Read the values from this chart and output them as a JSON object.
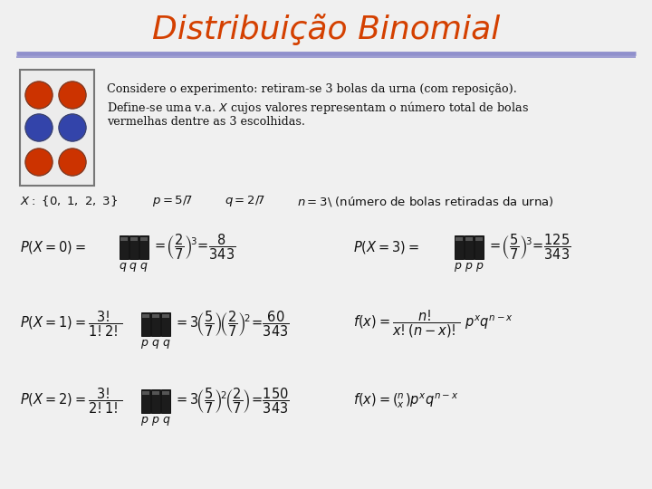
{
  "title": "Distribuição Binomial",
  "title_color": "#D44000",
  "title_fontsize": 26,
  "bg_color": "#F0F0F0",
  "line_color_top": "#9090CC",
  "line_color_bot": "#8888BB",
  "red_color": "#CC3300",
  "blue_color": "#3344AA",
  "dark_color": "#111111",
  "bar_dark": "#222222",
  "bar_gap": "#888888",
  "intro_line1": "Considere o experimento: retiram-se 3 bolas da urna (com reposição).",
  "intro_line2": "Define-se uma v.a. $X$ cujos valores representam o número total de bolas",
  "intro_line3": "vermelhas dentre as 3 escolhidas."
}
